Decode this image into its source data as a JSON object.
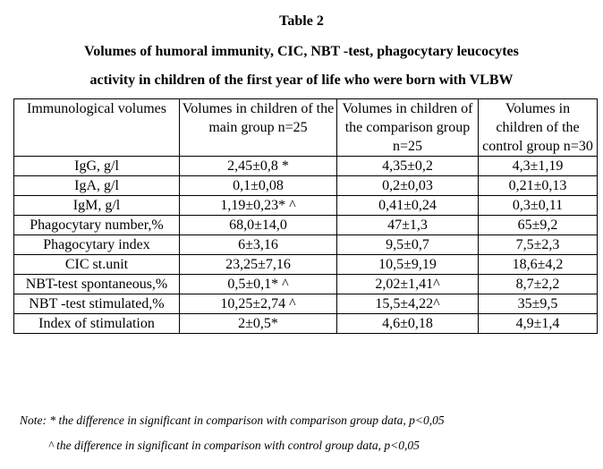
{
  "title": {
    "label": "Table 2",
    "line1": "Volumes of humoral immunity, CIC, NBT -test, phagocytary leucocytes",
    "line2": "activity in children of the first year of life who were born with VLBW"
  },
  "table": {
    "headers": [
      "Immunological volumes",
      "Volumes in children of the main group n=25",
      "Volumes in children of the comparison group n=25",
      "Volumes in children of the control group n=30"
    ],
    "rows": [
      [
        "IgG, g/l",
        "2,45±0,8 *",
        "4,35±0,2",
        "4,3±1,19"
      ],
      [
        "IgA, g/l",
        "0,1±0,08",
        "0,2±0,03",
        "0,21±0,13"
      ],
      [
        "IgM, g/l",
        "1,19±0,23* ^",
        "0,41±0,24",
        "0,3±0,11"
      ],
      [
        "Phagocytary number,%",
        "68,0±14,0",
        "47±1,3",
        "65±9,2"
      ],
      [
        "Phagocytary index",
        "6±3,16",
        "9,5±0,7",
        "7,5±2,3"
      ],
      [
        "CIC st.unit",
        "23,25±7,16",
        "10,5±9,19",
        "18,6±4,2"
      ],
      [
        "NBT-test spontaneous,%",
        "0,5±0,1* ^",
        "2,02±1,41^",
        "8,7±2,2"
      ],
      [
        "NBT -test stimulated,%",
        "10,25±2,74 ^",
        "15,5±4,22^",
        "35±9,5"
      ],
      [
        "Index of stimulation",
        "2±0,5*",
        "4,6±0,18",
        "4,9±1,4"
      ]
    ]
  },
  "notes": {
    "line1": "Note:  * the difference in significant in comparison with comparison group data, p<0,05",
    "line2": "^ the difference in significant in comparison with control group data, p<0,05"
  }
}
